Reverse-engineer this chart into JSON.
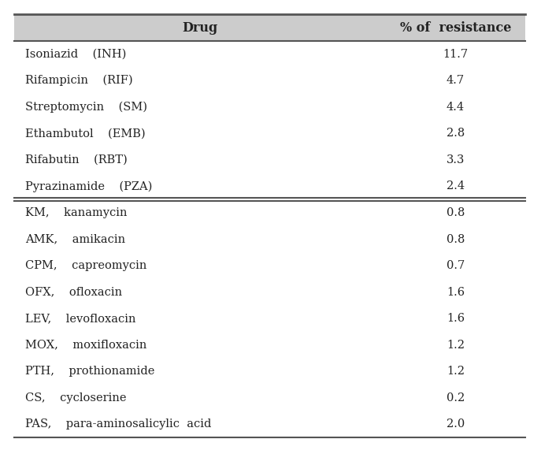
{
  "header": [
    "Drug",
    "% of  resistance"
  ],
  "rows_group1": [
    [
      "Isoniazid    (INH)",
      "11.7"
    ],
    [
      "Rifampicin    (RIF)",
      "4.7"
    ],
    [
      "Streptomycin    (SM)",
      "4.4"
    ],
    [
      "Ethambutol    (EMB)",
      "2.8"
    ],
    [
      "Rifabutin    (RBT)",
      "3.3"
    ],
    [
      "Pyrazinamide    (PZA)",
      "2.4"
    ]
  ],
  "rows_group2": [
    [
      "KM,    kanamycin",
      "0.8"
    ],
    [
      "AMK,    amikacin",
      "0.8"
    ],
    [
      "CPM,    capreomycin",
      "0.7"
    ],
    [
      "OFX,    ofloxacin",
      "1.6"
    ],
    [
      "LEV,    levofloxacin",
      "1.6"
    ],
    [
      "MOX,    moxifloxacin",
      "1.2"
    ],
    [
      "PTH,    prothionamide",
      "1.2"
    ],
    [
      "CS,    cycloserine",
      "0.2"
    ],
    [
      "PAS,    para-aminosalicylic  acid",
      "2.0"
    ]
  ],
  "bg_color": "#ffffff",
  "header_bg": "#cccccc",
  "line_color": "#555555",
  "text_color": "#222222",
  "font_size": 10.5,
  "header_font_size": 11.5
}
